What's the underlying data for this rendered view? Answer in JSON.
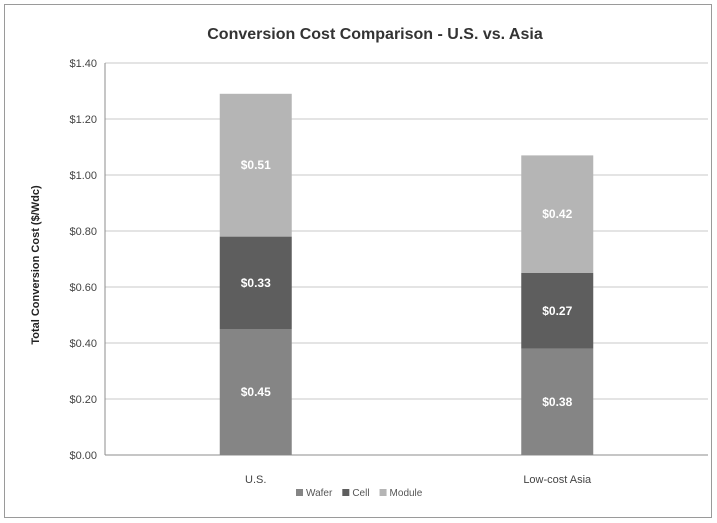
{
  "chart_data": {
    "type": "bar",
    "stacked": true,
    "title": "Conversion Cost Comparison - U.S. vs. Asia",
    "ylabel": "Total Conversion Cost ($/Wdc)",
    "xlabel": "",
    "categories": [
      "U.S.",
      "Low-cost Asia"
    ],
    "ylim": [
      0,
      1.4
    ],
    "yticks": [
      "$0.00",
      "$0.20",
      "$0.40",
      "$0.60",
      "$0.80",
      "$1.00",
      "$1.20",
      "$1.40"
    ],
    "ytick_values": [
      0,
      0.2,
      0.4,
      0.6,
      0.8,
      1.0,
      1.2,
      1.4
    ],
    "grid": true,
    "legend_position": "bottom",
    "series": [
      {
        "name": "Wafer",
        "values": [
          0.45,
          0.38
        ],
        "labels": [
          "$0.45",
          "$0.38"
        ],
        "color": "#858585"
      },
      {
        "name": "Cell",
        "values": [
          0.33,
          0.27
        ],
        "labels": [
          "$0.33",
          "$0.27"
        ],
        "color": "#5e5e5e"
      },
      {
        "name": "Module",
        "values": [
          0.51,
          0.42
        ],
        "labels": [
          "$0.51",
          "$0.42"
        ],
        "color": "#b5b5b5"
      }
    ]
  }
}
